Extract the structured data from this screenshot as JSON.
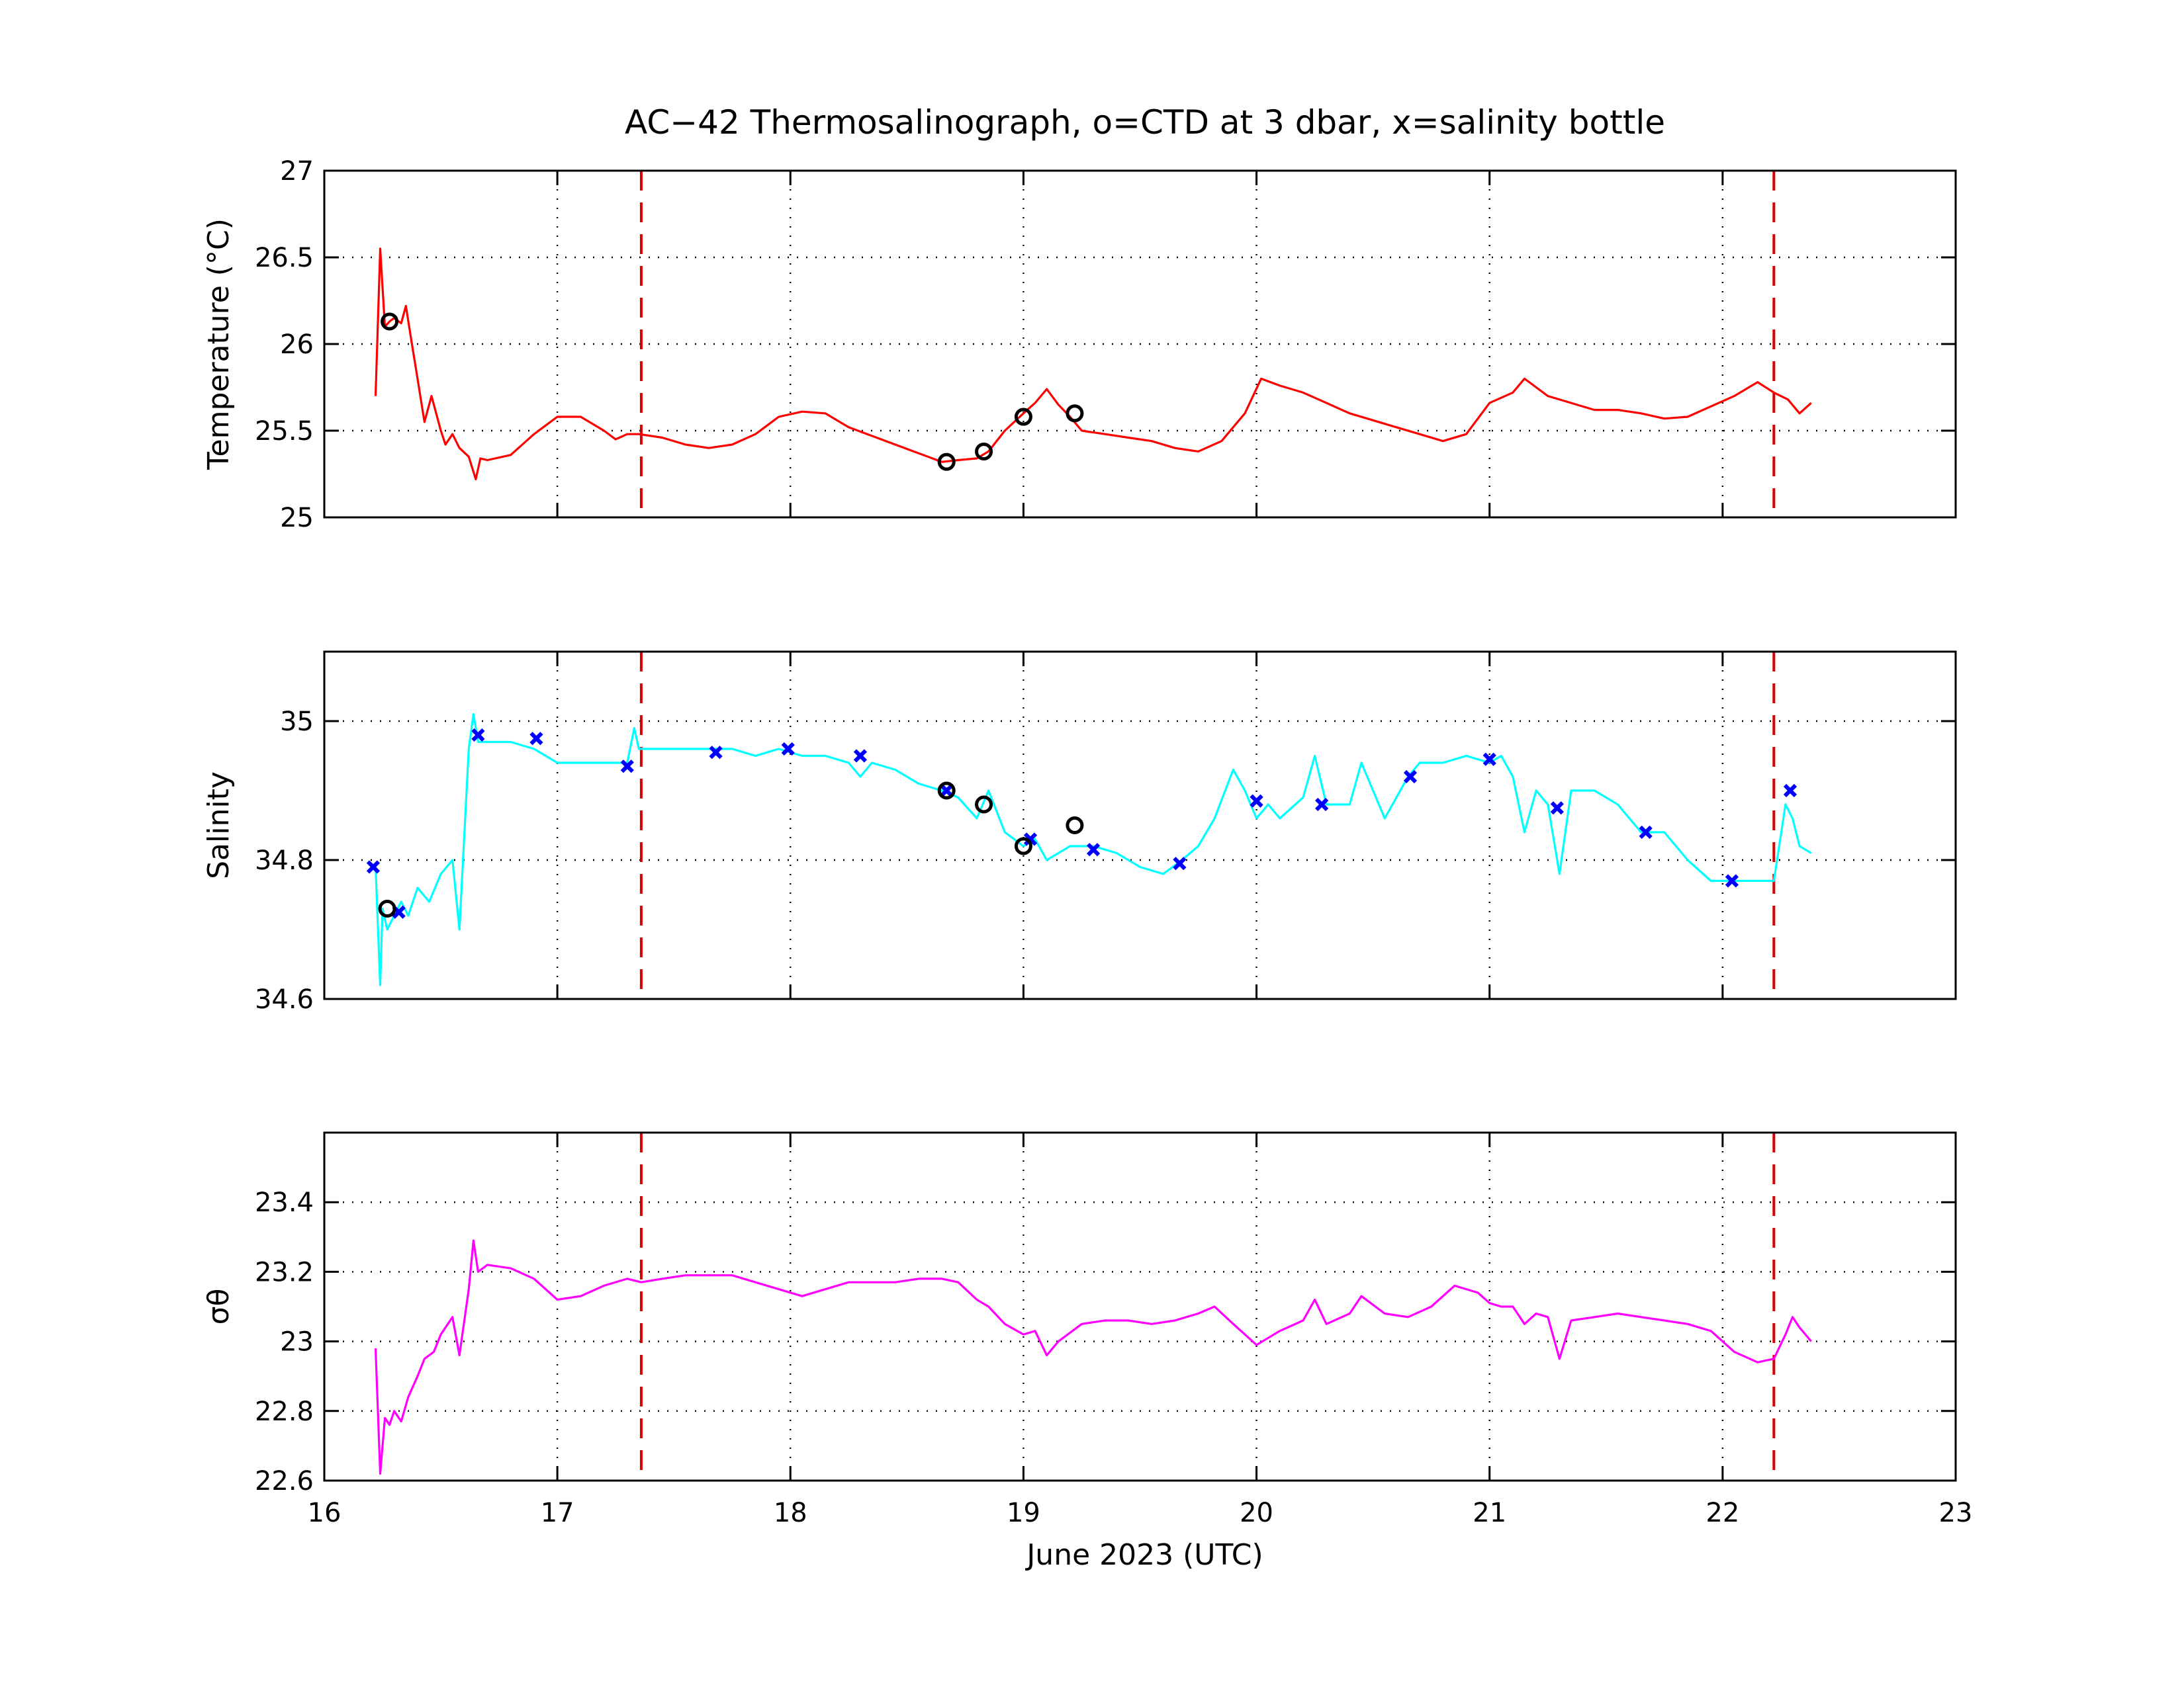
{
  "figure": {
    "title": "AC−42 Thermosalinograph, o=CTD at 3 dbar, x=salinity bottle",
    "xlabel": "June 2023 (UTC)",
    "xlim": [
      16,
      23
    ],
    "xticks": [
      16,
      17,
      18,
      19,
      20,
      21,
      22,
      23
    ],
    "xtick_labels": [
      "16",
      "17",
      "18",
      "19",
      "20",
      "21",
      "22",
      "23"
    ],
    "event_lines_x": [
      17.36,
      22.22
    ],
    "event_line_color": "#e00000"
  },
  "chart_data": [
    {
      "type": "line",
      "id": "temperature",
      "ylabel": "Temperature (°C)",
      "ylim": [
        25,
        27
      ],
      "yticks": [
        25,
        25.5,
        26,
        26.5,
        27
      ],
      "ytick_labels": [
        "25",
        "25.5",
        "26",
        "26.5",
        "27"
      ],
      "grid": true,
      "color": "#ff0000",
      "series": [
        {
          "x": [
            16.22,
            16.24,
            16.26,
            16.28,
            16.3,
            16.33,
            16.35,
            16.37,
            16.4,
            16.43,
            16.46,
            16.5,
            16.52,
            16.55,
            16.58,
            16.62,
            16.65,
            16.67,
            16.7,
            16.8,
            16.9,
            17.0,
            17.1,
            17.2,
            17.25,
            17.3,
            17.35,
            17.45,
            17.55,
            17.65,
            17.75,
            17.85,
            17.95,
            18.05,
            18.15,
            18.25,
            18.35,
            18.45,
            18.55,
            18.65,
            18.72,
            18.8,
            18.85,
            18.92,
            19.0,
            19.05,
            19.1,
            19.15,
            19.2,
            19.25,
            19.35,
            19.45,
            19.55,
            19.65,
            19.75,
            19.85,
            19.95,
            20.02,
            20.1,
            20.2,
            20.3,
            20.4,
            20.5,
            20.6,
            20.7,
            20.8,
            20.9,
            21.0,
            21.1,
            21.15,
            21.25,
            21.35,
            21.45,
            21.55,
            21.65,
            21.75,
            21.85,
            21.95,
            22.05,
            22.15,
            22.22,
            22.28,
            22.33,
            22.38
          ],
          "y": [
            25.7,
            26.55,
            26.1,
            26.13,
            26.15,
            26.12,
            26.22,
            26.05,
            25.8,
            25.55,
            25.7,
            25.5,
            25.42,
            25.48,
            25.4,
            25.35,
            25.22,
            25.34,
            25.33,
            25.36,
            25.48,
            25.58,
            25.58,
            25.5,
            25.45,
            25.48,
            25.48,
            25.46,
            25.42,
            25.4,
            25.42,
            25.48,
            25.58,
            25.61,
            25.6,
            25.52,
            25.47,
            25.42,
            25.37,
            25.32,
            25.33,
            25.34,
            25.38,
            25.5,
            25.6,
            25.66,
            25.74,
            25.65,
            25.58,
            25.5,
            25.48,
            25.46,
            25.44,
            25.4,
            25.38,
            25.44,
            25.6,
            25.8,
            25.76,
            25.72,
            25.66,
            25.6,
            25.56,
            25.52,
            25.48,
            25.44,
            25.48,
            25.66,
            25.72,
            25.8,
            25.7,
            25.66,
            25.62,
            25.62,
            25.6,
            25.57,
            25.58,
            25.64,
            25.7,
            25.78,
            25.72,
            25.68,
            25.6,
            25.66
          ]
        }
      ],
      "ctd_points": {
        "x": [
          16.28,
          18.67,
          18.83,
          19.0,
          19.22
        ],
        "y": [
          26.13,
          25.32,
          25.38,
          25.58,
          25.6
        ]
      }
    },
    {
      "type": "line",
      "id": "salinity",
      "ylabel": "Salinity",
      "ylim": [
        34.6,
        35.1
      ],
      "yticks": [
        34.6,
        34.8,
        35.0
      ],
      "ytick_labels": [
        "34.6",
        "34.8",
        "35"
      ],
      "grid": true,
      "color": "#00ffff",
      "series": [
        {
          "x": [
            16.22,
            16.24,
            16.25,
            16.27,
            16.3,
            16.33,
            16.36,
            16.4,
            16.45,
            16.5,
            16.55,
            16.58,
            16.62,
            16.64,
            16.66,
            16.7,
            16.8,
            16.9,
            17.0,
            17.1,
            17.2,
            17.3,
            17.33,
            17.35,
            17.45,
            17.55,
            17.65,
            17.75,
            17.85,
            17.95,
            18.05,
            18.15,
            18.25,
            18.3,
            18.35,
            18.45,
            18.55,
            18.65,
            18.72,
            18.8,
            18.85,
            18.92,
            19.0,
            19.05,
            19.1,
            19.2,
            19.3,
            19.4,
            19.5,
            19.6,
            19.68,
            19.75,
            19.82,
            19.9,
            19.95,
            20.0,
            20.05,
            20.1,
            20.2,
            20.25,
            20.3,
            20.4,
            20.45,
            20.55,
            20.65,
            20.7,
            20.8,
            20.9,
            21.0,
            21.05,
            21.1,
            21.15,
            21.2,
            21.25,
            21.3,
            21.35,
            21.45,
            21.55,
            21.65,
            21.75,
            21.85,
            21.95,
            22.05,
            22.15,
            22.22,
            22.27,
            22.3,
            22.33,
            22.38
          ],
          "y": [
            34.79,
            34.62,
            34.73,
            34.7,
            34.72,
            34.74,
            34.72,
            34.76,
            34.74,
            34.78,
            34.8,
            34.7,
            34.96,
            35.01,
            34.97,
            34.97,
            34.97,
            34.96,
            34.94,
            34.94,
            34.94,
            34.94,
            34.99,
            34.96,
            34.96,
            34.96,
            34.96,
            34.96,
            34.95,
            34.96,
            34.95,
            34.95,
            34.94,
            34.92,
            34.94,
            34.93,
            34.91,
            34.9,
            34.89,
            34.86,
            34.9,
            34.84,
            34.82,
            34.83,
            34.8,
            34.82,
            34.82,
            34.81,
            34.79,
            34.78,
            34.8,
            34.82,
            34.86,
            34.93,
            34.9,
            34.86,
            34.88,
            34.86,
            34.89,
            34.95,
            34.88,
            34.88,
            34.94,
            34.86,
            34.92,
            34.94,
            34.94,
            34.95,
            34.94,
            34.95,
            34.92,
            34.84,
            34.9,
            34.88,
            34.78,
            34.9,
            34.9,
            34.88,
            34.84,
            34.84,
            34.8,
            34.77,
            34.77,
            34.77,
            34.77,
            34.88,
            34.86,
            34.82,
            34.81
          ]
        }
      ],
      "bottle_points": {
        "x": [
          16.21,
          16.32,
          16.66,
          16.91,
          17.3,
          17.68,
          17.99,
          18.3,
          18.67,
          19.03,
          19.3,
          19.67,
          20.0,
          20.28,
          20.66,
          21.0,
          21.29,
          21.67,
          22.04,
          22.29
        ],
        "y": [
          34.79,
          34.725,
          34.98,
          34.975,
          34.935,
          34.955,
          34.96,
          34.95,
          34.9,
          34.83,
          34.815,
          34.795,
          34.885,
          34.88,
          34.92,
          34.945,
          34.875,
          34.84,
          34.77,
          34.9
        ]
      },
      "ctd_points": {
        "x": [
          16.27,
          18.67,
          18.83,
          19.0,
          19.22
        ],
        "y": [
          34.73,
          34.9,
          34.88,
          34.82,
          34.85
        ]
      }
    },
    {
      "type": "line",
      "id": "sigma_theta",
      "ylabel": "σθ",
      "ylim": [
        22.6,
        23.6
      ],
      "yticks": [
        22.6,
        22.8,
        23.0,
        23.2,
        23.4
      ],
      "ytick_labels": [
        "22.6",
        "22.8",
        "23",
        "23.2",
        "23.4"
      ],
      "grid": true,
      "color": "#ff00ff",
      "series": [
        {
          "x": [
            16.22,
            16.24,
            16.26,
            16.28,
            16.3,
            16.33,
            16.36,
            16.4,
            16.43,
            16.47,
            16.5,
            16.55,
            16.58,
            16.62,
            16.64,
            16.66,
            16.7,
            16.8,
            16.9,
            17.0,
            17.1,
            17.2,
            17.3,
            17.36,
            17.45,
            17.55,
            17.65,
            17.75,
            17.85,
            17.95,
            18.05,
            18.15,
            18.25,
            18.35,
            18.45,
            18.55,
            18.65,
            18.72,
            18.8,
            18.85,
            18.92,
            19.0,
            19.05,
            19.1,
            19.15,
            19.25,
            19.35,
            19.45,
            19.55,
            19.65,
            19.75,
            19.82,
            19.9,
            19.95,
            20.0,
            20.1,
            20.2,
            20.25,
            20.3,
            20.4,
            20.45,
            20.55,
            20.65,
            20.75,
            20.85,
            20.95,
            21.0,
            21.05,
            21.1,
            21.15,
            21.2,
            21.25,
            21.3,
            21.35,
            21.45,
            21.55,
            21.65,
            21.75,
            21.85,
            21.95,
            22.05,
            22.15,
            22.22,
            22.27,
            22.3,
            22.33,
            22.38
          ],
          "y": [
            22.98,
            22.62,
            22.78,
            22.76,
            22.8,
            22.77,
            22.84,
            22.9,
            22.95,
            22.97,
            23.02,
            23.07,
            22.96,
            23.15,
            23.29,
            23.2,
            23.22,
            23.21,
            23.18,
            23.12,
            23.13,
            23.16,
            23.18,
            23.17,
            23.18,
            23.19,
            23.19,
            23.19,
            23.17,
            23.15,
            23.13,
            23.15,
            23.17,
            23.17,
            23.17,
            23.18,
            23.18,
            23.17,
            23.12,
            23.1,
            23.05,
            23.02,
            23.03,
            22.96,
            23.0,
            23.05,
            23.06,
            23.06,
            23.05,
            23.06,
            23.08,
            23.1,
            23.05,
            23.02,
            22.99,
            23.03,
            23.06,
            23.12,
            23.05,
            23.08,
            23.13,
            23.08,
            23.07,
            23.1,
            23.16,
            23.14,
            23.11,
            23.1,
            23.1,
            23.05,
            23.08,
            23.07,
            22.95,
            23.06,
            23.07,
            23.08,
            23.07,
            23.06,
            23.05,
            23.03,
            22.97,
            22.94,
            22.95,
            23.02,
            23.07,
            23.04,
            23.0
          ]
        }
      ]
    }
  ]
}
